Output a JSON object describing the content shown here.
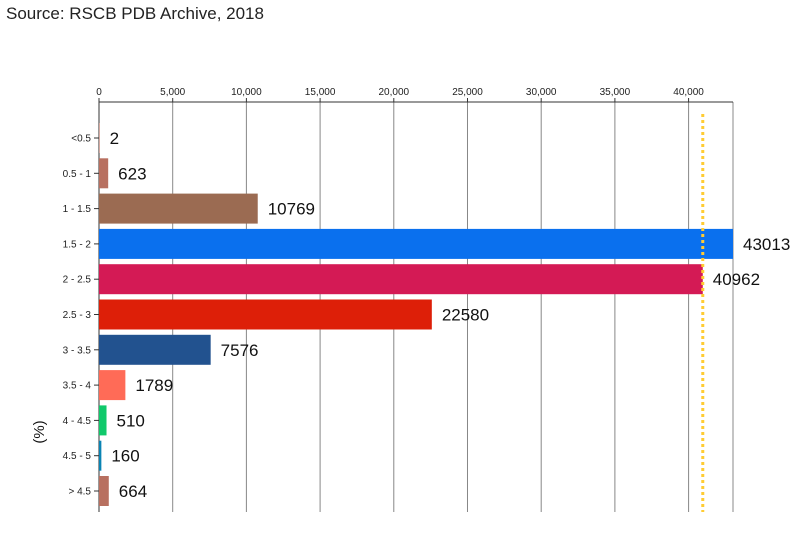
{
  "source": "Source: RSCB PDB Archive, 2018",
  "chart_data": {
    "type": "bar",
    "orientation": "horizontal",
    "ylabel": "(%)",
    "xlim": [
      0,
      43013
    ],
    "x_ticks": [
      0,
      5000,
      10000,
      15000,
      20000,
      25000,
      30000,
      35000,
      40000
    ],
    "x_tick_labels": [
      "0",
      "5,000",
      "10,000",
      "15,000",
      "20,000",
      "25,000",
      "30,000",
      "35,000",
      "40,000"
    ],
    "categories": [
      "<0.5",
      "0.5 - 1",
      "1 - 1.5",
      "1.5 - 2",
      "2 - 2.5",
      "2.5 - 3",
      "3 - 3.5",
      "3.5 - 4",
      "4 - 4.5",
      "4.5 - 5",
      "> 4.5"
    ],
    "values": [
      2,
      623,
      10769,
      43013,
      40962,
      22580,
      7576,
      1789,
      510,
      160,
      664
    ],
    "value_labels": [
      "2",
      "623",
      "10769",
      "43013",
      "40962",
      "22580",
      "7576",
      "1789",
      "510",
      "160",
      "664"
    ],
    "colors": [
      "#b87060",
      "#b87060",
      "#9b6b52",
      "#0a70ee",
      "#d41a55",
      "#dd1f08",
      "#22528f",
      "#ff6b57",
      "#10c96b",
      "#0a84b4",
      "#b87060"
    ],
    "value_label_colors": [
      "#111111",
      "#111111",
      "#111111",
      "#111111",
      "#e0434f",
      "#111111",
      "#111111",
      "#111111",
      "#111111",
      "#111111",
      "#111111"
    ],
    "reference_line": {
      "value": 40962,
      "color": "#ffcc33"
    },
    "grid": true,
    "legend": "none"
  }
}
